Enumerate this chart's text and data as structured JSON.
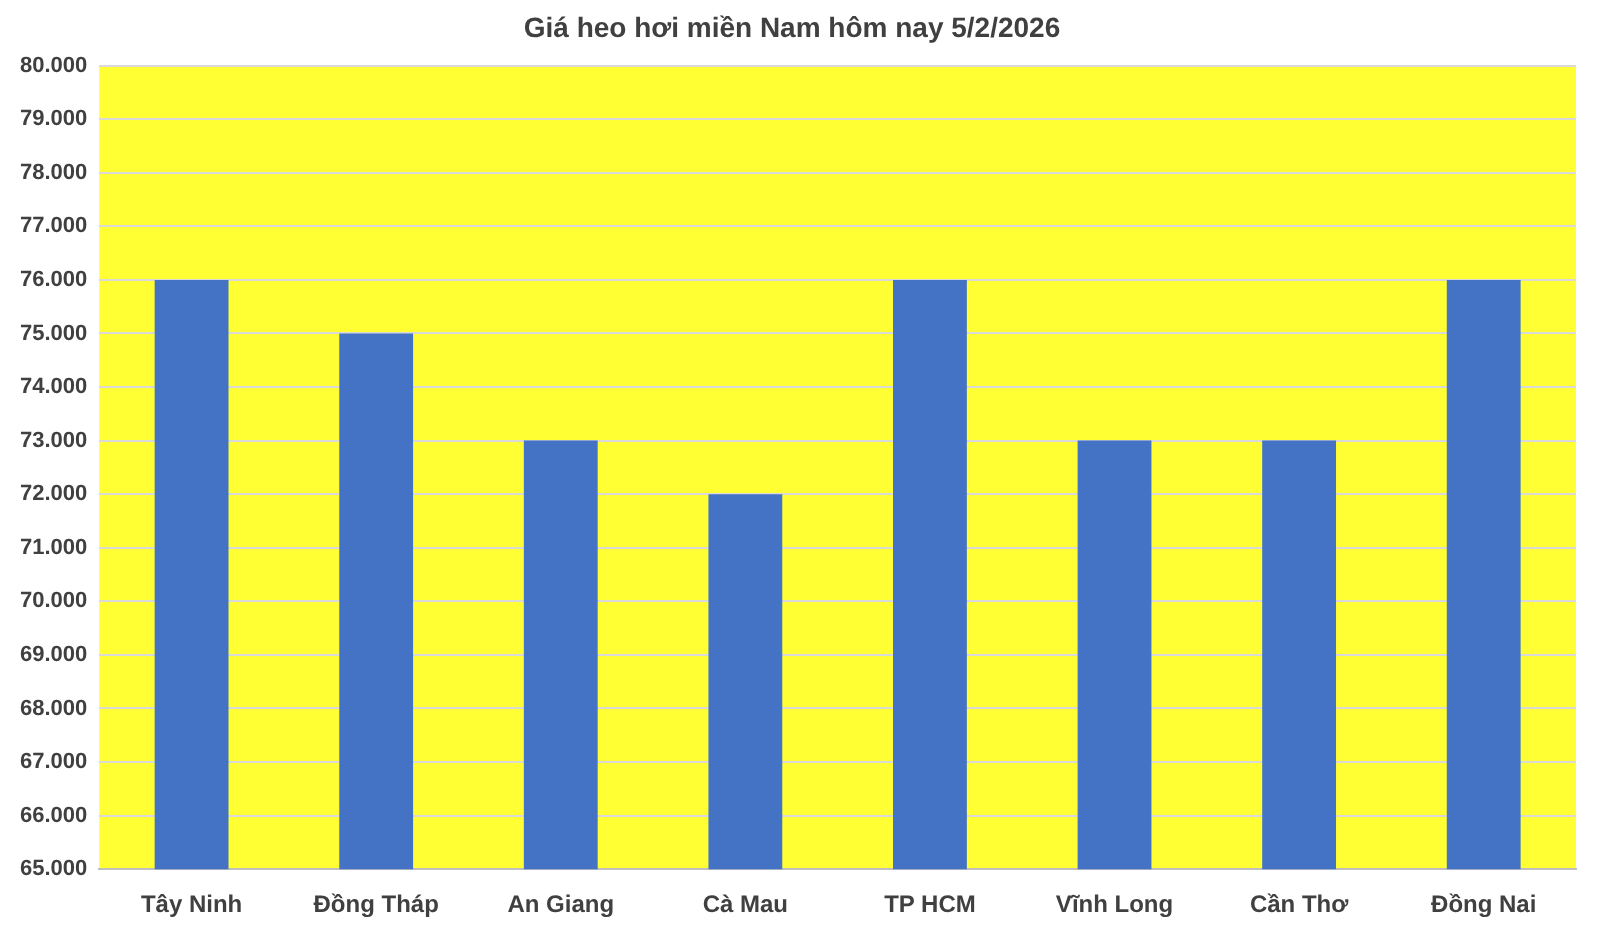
{
  "chart_data": {
    "type": "bar",
    "title": "Giá heo hơi miền Nam hôm nay 5/2/2026",
    "categories": [
      "Tây Ninh",
      "Đồng Tháp",
      "An Giang",
      "Cà Mau",
      "TP HCM",
      "Vĩnh Long",
      "Cần Thơ",
      "Đồng Nai"
    ],
    "values": [
      76000,
      75000,
      73000,
      72000,
      76000,
      73000,
      73000,
      76000
    ],
    "color": "#4472c4",
    "ylim": [
      65000,
      80000
    ],
    "yticks": [
      {
        "value": 65000,
        "label": "65.000"
      },
      {
        "value": 66000,
        "label": "66.000"
      },
      {
        "value": 67000,
        "label": "67.000"
      },
      {
        "value": 68000,
        "label": "68.000"
      },
      {
        "value": 69000,
        "label": "69.000"
      },
      {
        "value": 70000,
        "label": "70.000"
      },
      {
        "value": 71000,
        "label": "71.000"
      },
      {
        "value": 72000,
        "label": "72.000"
      },
      {
        "value": 73000,
        "label": "73.000"
      },
      {
        "value": 74000,
        "label": "74.000"
      },
      {
        "value": 75000,
        "label": "75.000"
      },
      {
        "value": 76000,
        "label": "76.000"
      },
      {
        "value": 77000,
        "label": "77.000"
      },
      {
        "value": 78000,
        "label": "78.000"
      },
      {
        "value": 79000,
        "label": "79.000"
      },
      {
        "value": 80000,
        "label": "80.000"
      }
    ],
    "grid": "y"
  }
}
